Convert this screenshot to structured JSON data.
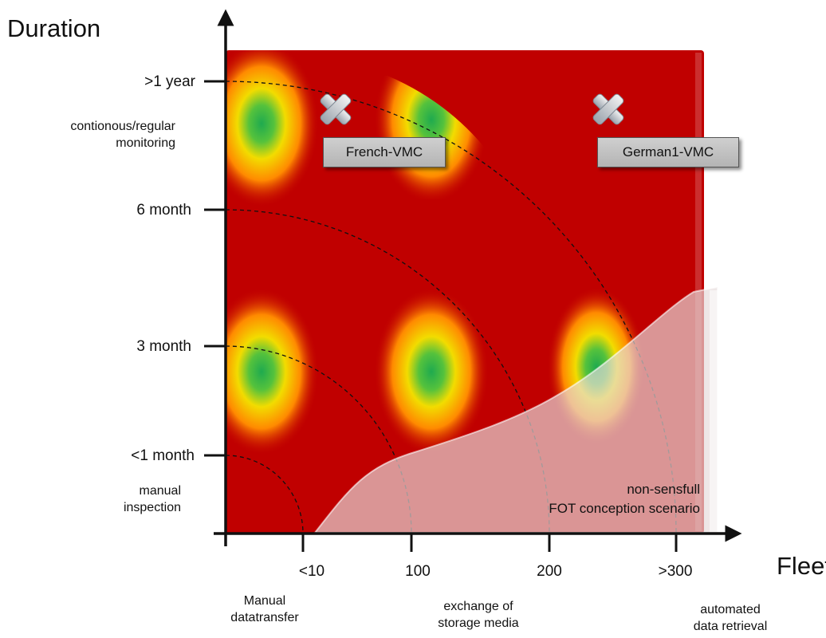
{
  "axes": {
    "y_title": "Duration",
    "x_title": "Fleet"
  },
  "y_ticks": [
    ">1 year",
    "6 month",
    "3 month",
    "<1 month"
  ],
  "x_ticks": [
    "<10",
    "100",
    "200",
    ">300"
  ],
  "y_notes": {
    "top": "contionous/regular\nmonitoring",
    "bottom": "manual\ninspection"
  },
  "x_notes": {
    "left": "Manual\ndatatransfer",
    "middle": "exchange of\nstorage media",
    "right": "automated\ndata retrieval"
  },
  "region_label": "non-sensfull\nFOT conception scenario",
  "markers": [
    "French-VMC",
    "German1-VMC"
  ],
  "colors": {
    "background": "#c00000",
    "hotspot_core": "#2fb34a",
    "hotspot_mid": "#ffd200",
    "hotspot_outer": "#ff7a00",
    "excluded_region": "#c8b4b4",
    "marker_box": "#c0c0c0"
  }
}
